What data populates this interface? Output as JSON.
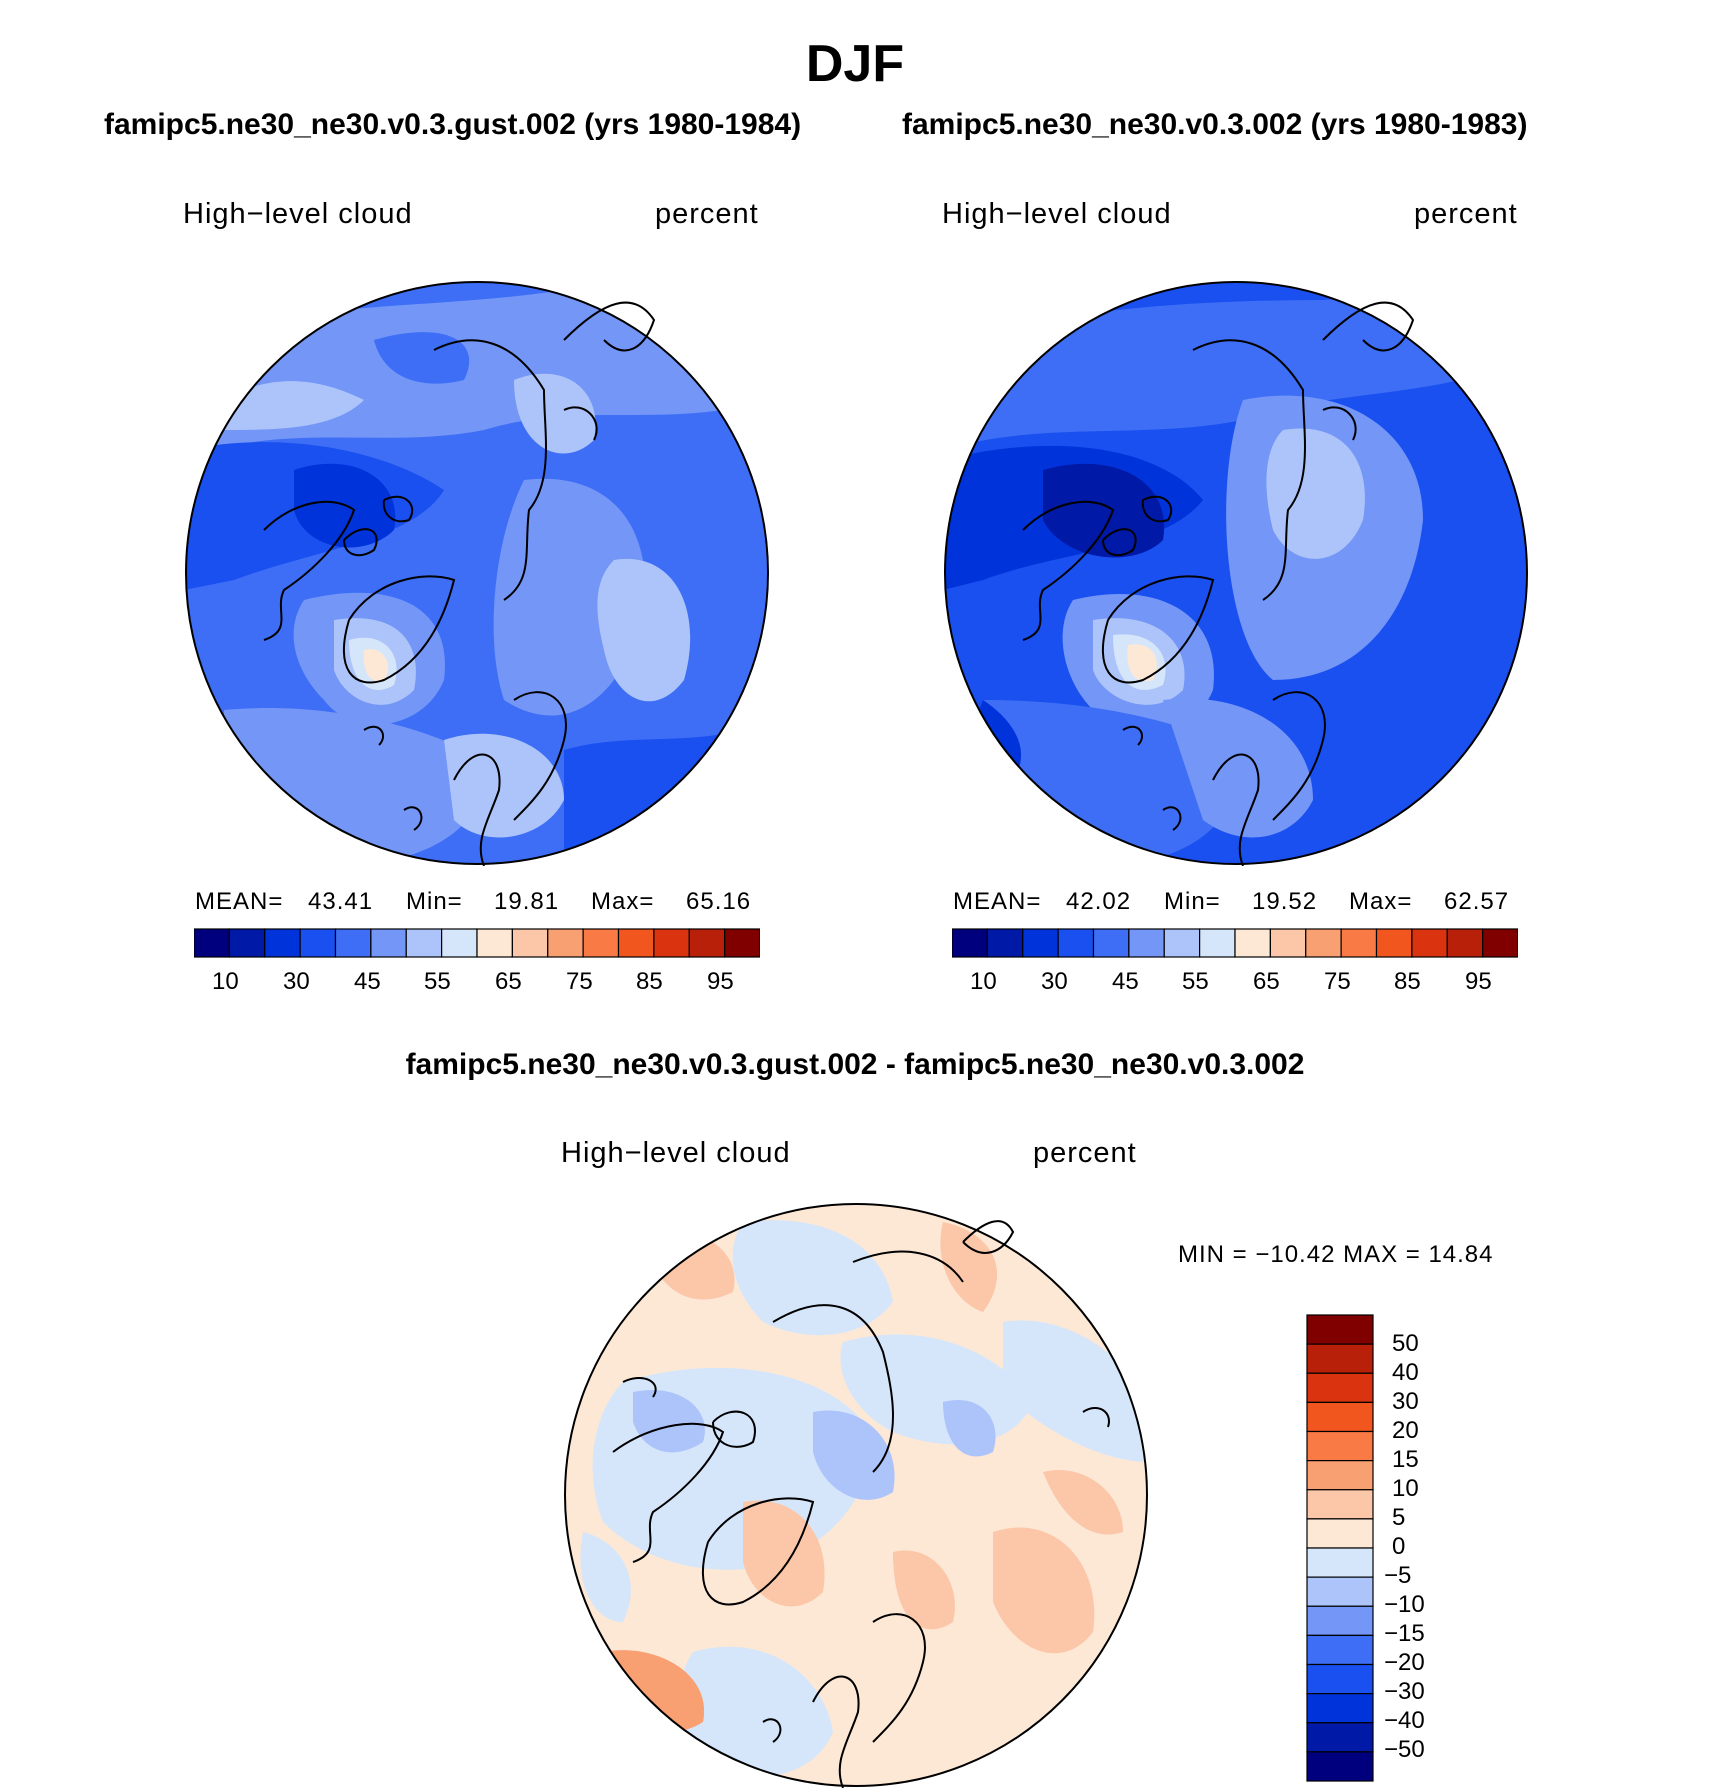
{
  "page": {
    "title": "DJF"
  },
  "colors": {
    "abs_scale": [
      "#00007f",
      "#0019a6",
      "#0033d9",
      "#1a4ff0",
      "#3d6ef5",
      "#7396f7",
      "#adc4fa",
      "#d6e6fa",
      "#fde8d6",
      "#fbc7a8",
      "#f9a073",
      "#f97a45",
      "#f2561f",
      "#d9330f",
      "#b8200a",
      "#800000"
    ],
    "diff_scale": [
      "#00007f",
      "#0019a6",
      "#0033d9",
      "#1a4ff0",
      "#3d6ef5",
      "#7396f7",
      "#adc4fa",
      "#d6e6fa",
      "#fde8d6",
      "#fbc7a8",
      "#f9a073",
      "#f97a45",
      "#f2561f",
      "#d9330f",
      "#b8200a",
      "#800000"
    ]
  },
  "panels": [
    {
      "case_title": "famipc5.ne30_ne30.v0.3.gust.002 (yrs 1980-1984)",
      "variable": "High−level cloud",
      "units": "percent",
      "mean_label": "MEAN=",
      "mean": "43.41",
      "min_label": "Min=",
      "min": "19.81",
      "max_label": "Max=",
      "max": "65.16",
      "ticks": [
        "10",
        "30",
        "45",
        "55",
        "65",
        "75",
        "85",
        "95"
      ]
    },
    {
      "case_title": "famipc5.ne30_ne30.v0.3.002 (yrs 1980-1983)",
      "variable": "High−level cloud",
      "units": "percent",
      "mean_label": "MEAN=",
      "mean": "42.02",
      "min_label": "Min=",
      "min": "19.52",
      "max_label": "Max=",
      "max": "62.57",
      "ticks": [
        "10",
        "30",
        "45",
        "55",
        "65",
        "75",
        "85",
        "95"
      ]
    }
  ],
  "diff": {
    "title": "famipc5.ne30_ne30.v0.3.gust.002 - famipc5.ne30_ne30.v0.3.002",
    "variable": "High−level cloud",
    "units": "percent",
    "minmax": "MIN = −10.42 MAX =   14.84",
    "ticks": [
      "50",
      "40",
      "30",
      "20",
      "15",
      "10",
      "5",
      "0",
      "−5",
      "−10",
      "−15",
      "−20",
      "−30",
      "−40",
      "−50"
    ]
  }
}
